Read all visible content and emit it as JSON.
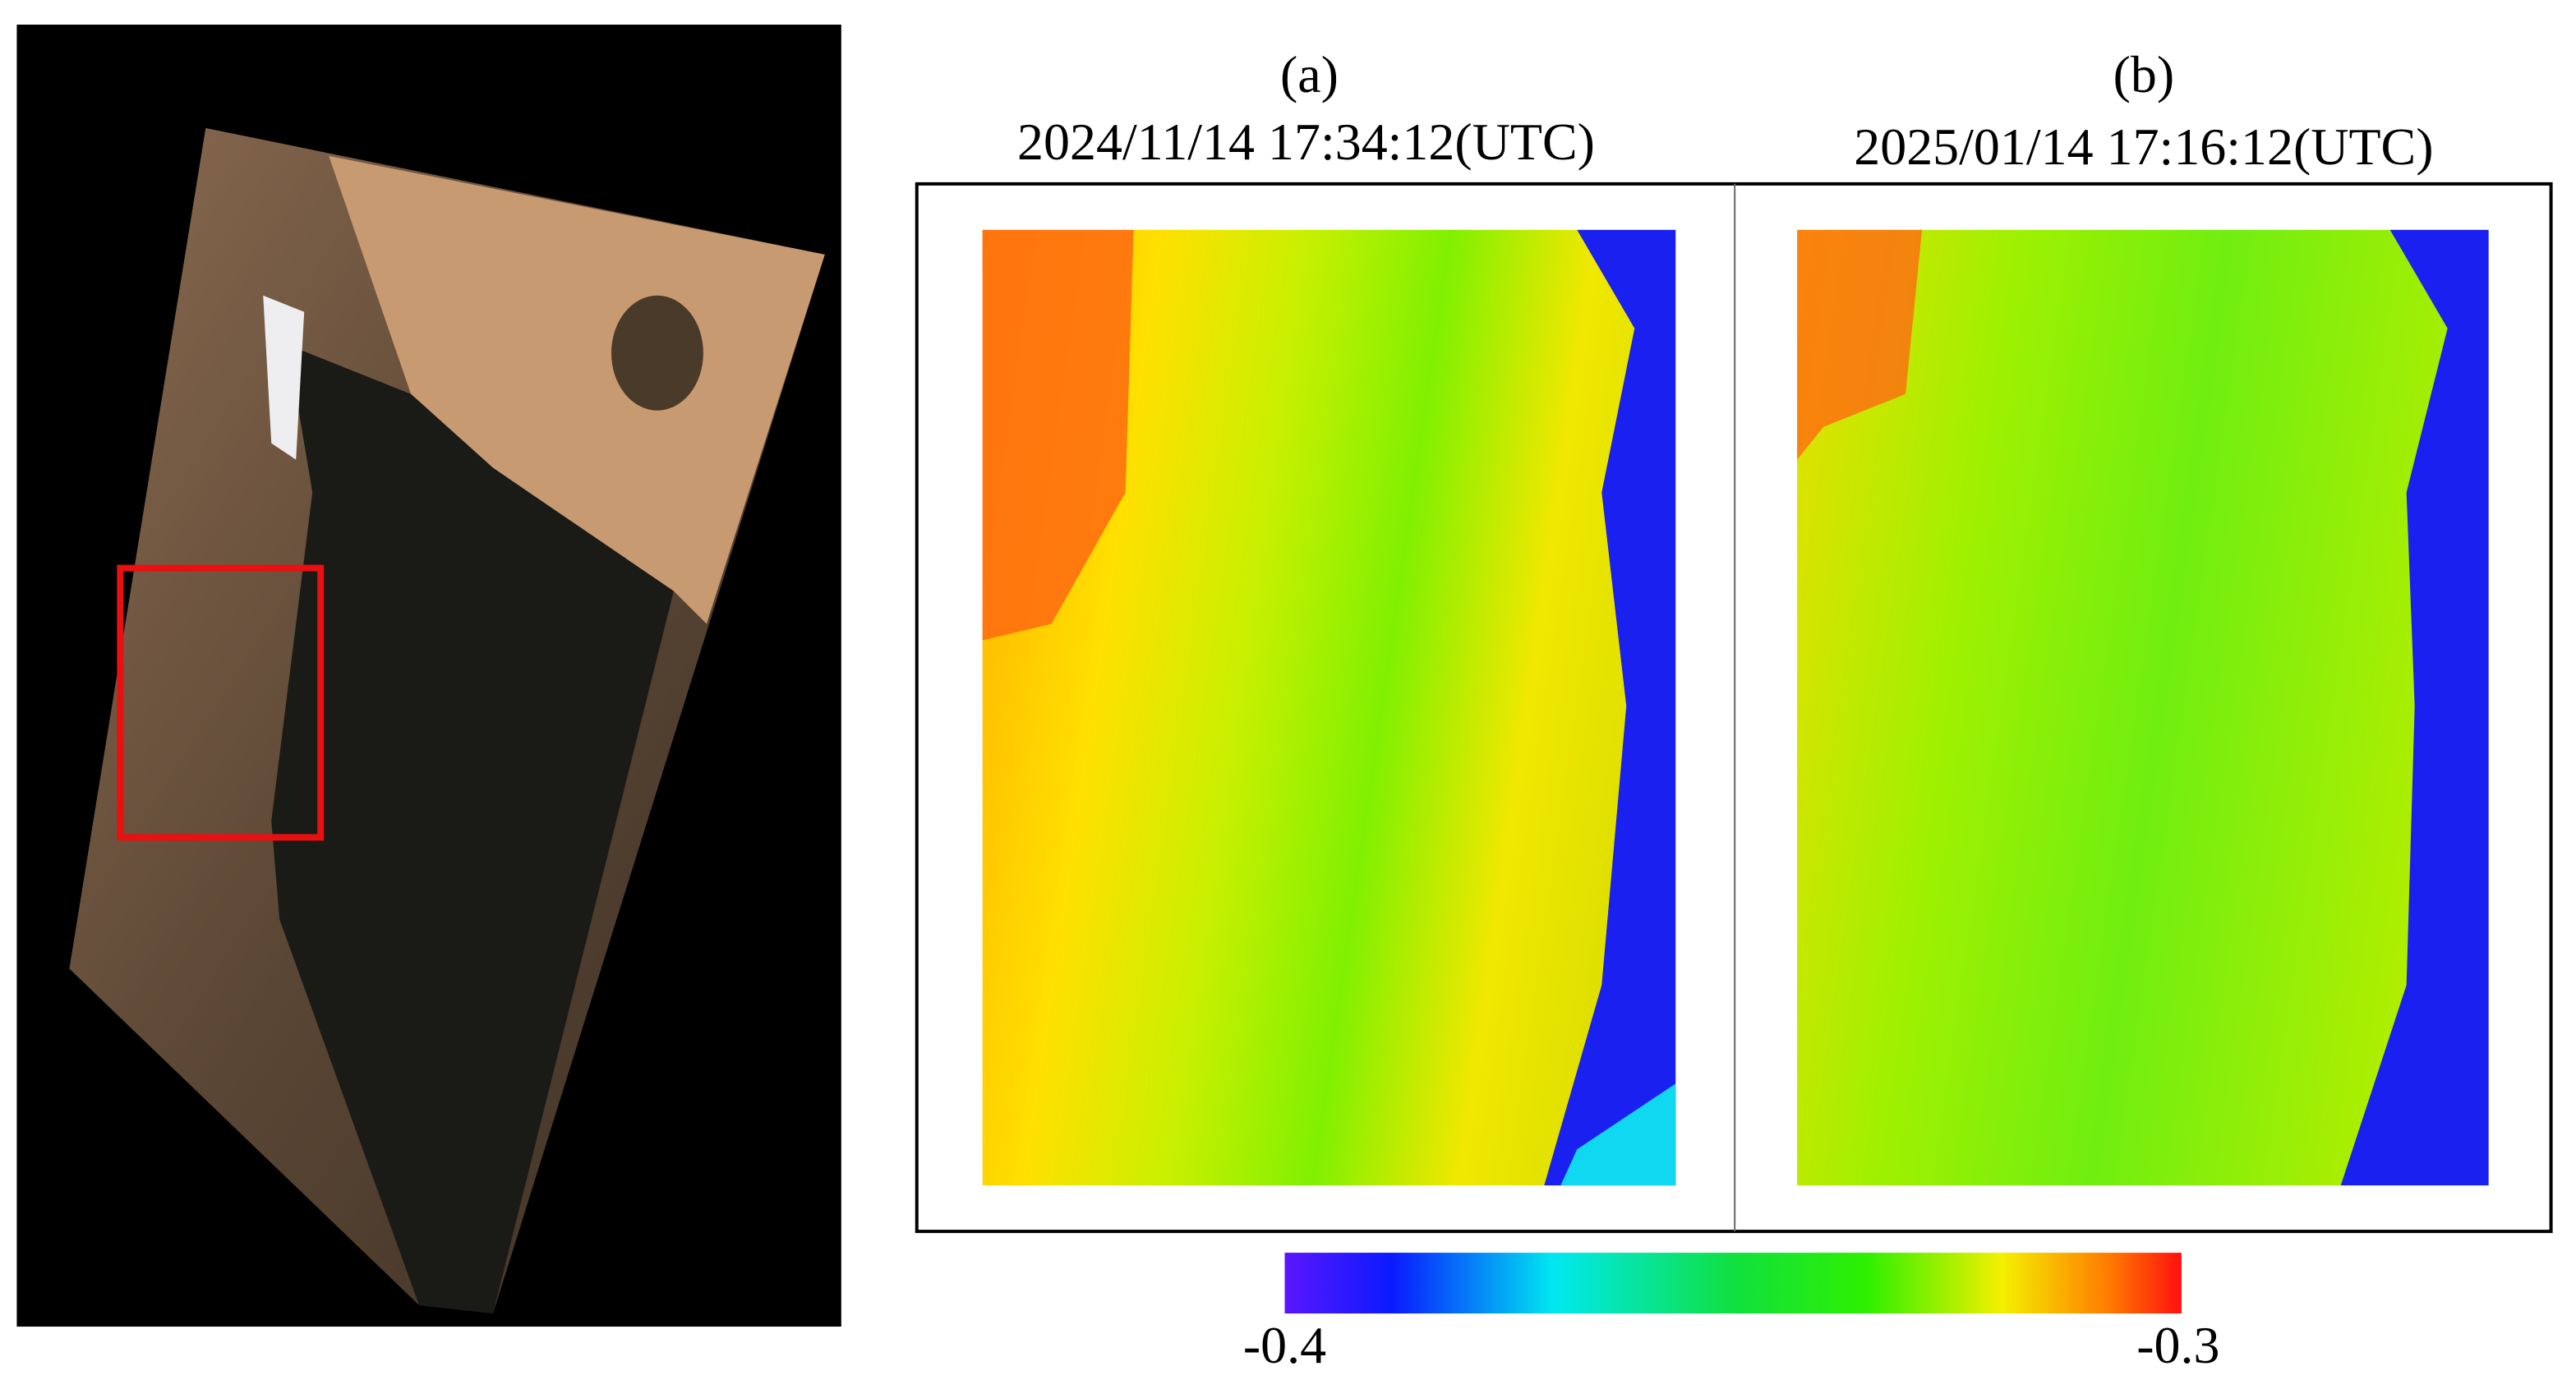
{
  "panels": [
    {
      "label": "(a)",
      "timestamp": "2024/11/14 17:34:12(UTC)"
    },
    {
      "label": "(b)",
      "timestamp": "2025/01/14 17:16:12(UTC)"
    }
  ],
  "colorbar": {
    "min_label": "-0.4",
    "max_label": "-0.3"
  }
}
